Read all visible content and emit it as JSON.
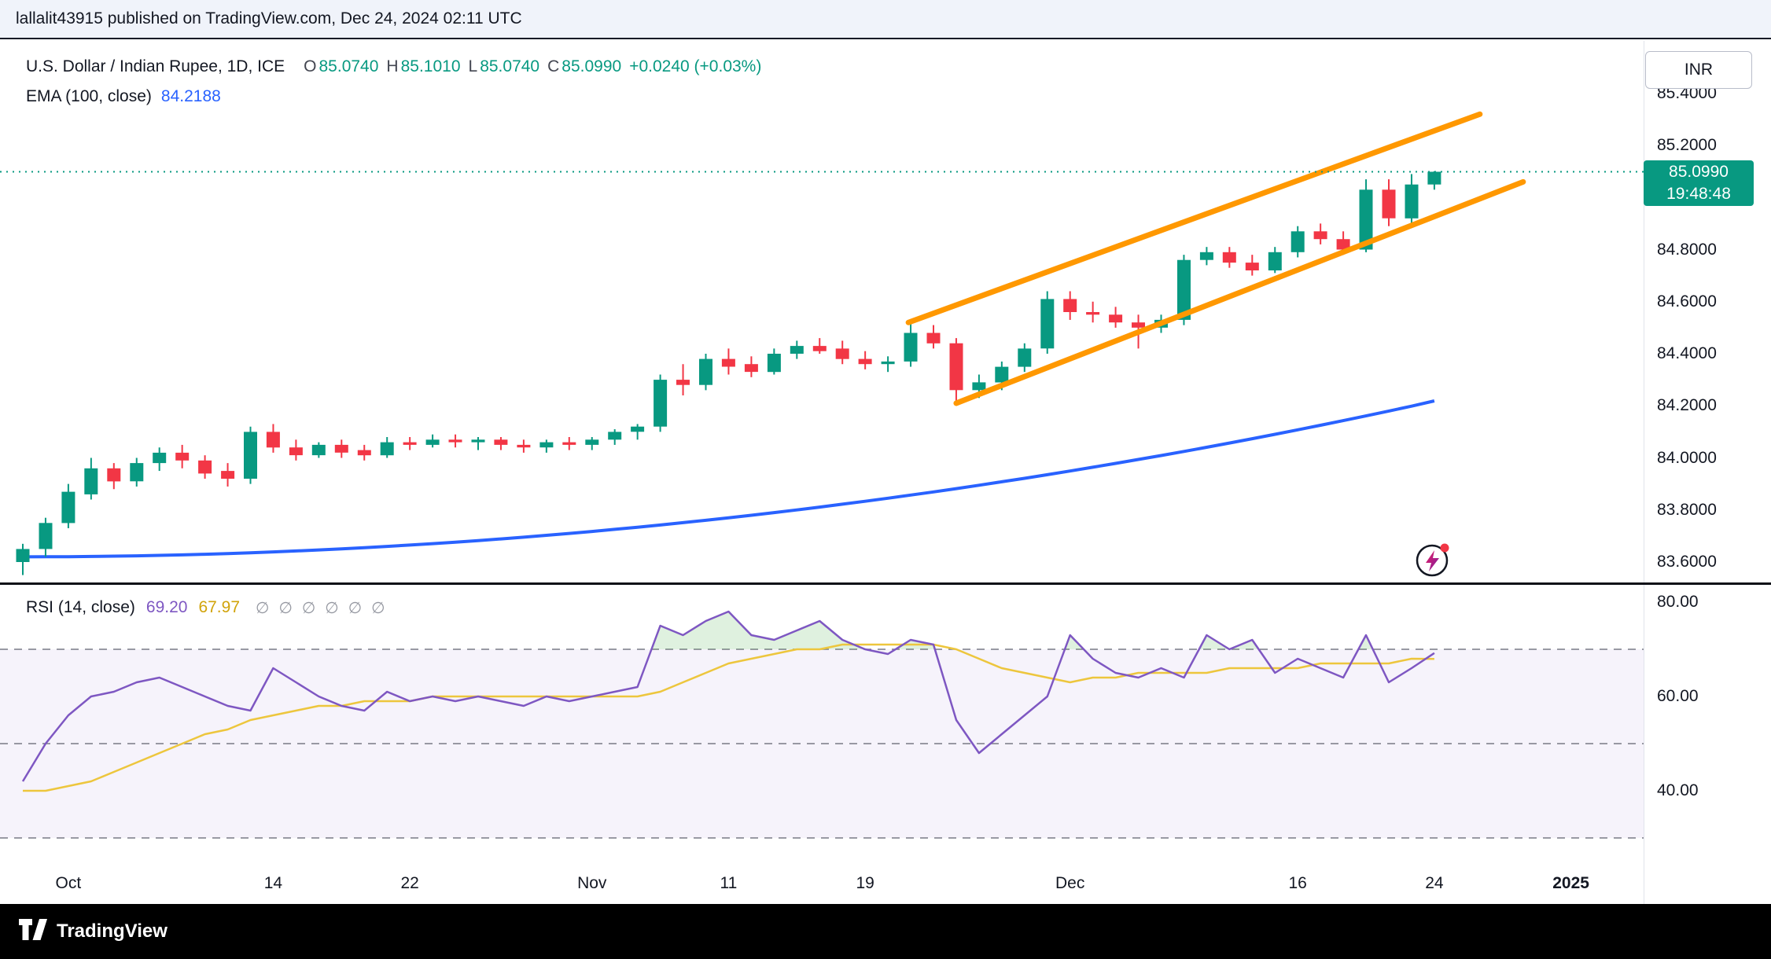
{
  "attribution": {
    "text": "lallalit43915 published on TradingView.com, Dec 24, 2024 02:11 UTC"
  },
  "header": {
    "symbol": "U.S. Dollar / Indian Rupee, 1D, ICE",
    "o_label": "O",
    "o": "85.0740",
    "h_label": "H",
    "h": "85.1010",
    "l_label": "L",
    "l": "85.0740",
    "c_label": "C",
    "c": "85.0990",
    "change": "+0.0240 (+0.03%)",
    "indicator_label": "EMA (100, close)",
    "indicator_value": "84.2188"
  },
  "price_axis": {
    "currency": "INR",
    "labels": [
      {
        "text": "85.4000",
        "value": 85.4
      },
      {
        "text": "85.2000",
        "value": 85.2
      },
      {
        "text": "84.8000",
        "value": 84.8
      },
      {
        "text": "84.6000",
        "value": 84.6
      },
      {
        "text": "84.4000",
        "value": 84.4
      },
      {
        "text": "84.2000",
        "value": 84.2
      },
      {
        "text": "84.0000",
        "value": 84.0
      },
      {
        "text": "83.8000",
        "value": 83.8
      },
      {
        "text": "83.6000",
        "value": 83.6
      }
    ],
    "current_price": "85.0990",
    "countdown": "19:48:48"
  },
  "rsi_panel": {
    "label": "RSI (14, close)",
    "value": "69.20",
    "ma_value": "67.97",
    "hidden_icons": [
      "∅",
      "∅",
      "∅",
      "∅",
      "∅",
      "∅"
    ],
    "axis_labels": [
      {
        "text": "80.00",
        "value": 80
      },
      {
        "text": "60.00",
        "value": 60
      },
      {
        "text": "40.00",
        "value": 40
      }
    ]
  },
  "time_axis": {
    "labels": [
      {
        "text": "Oct",
        "i": 2,
        "bold": false
      },
      {
        "text": "14",
        "i": 11,
        "bold": false
      },
      {
        "text": "22",
        "i": 17,
        "bold": false
      },
      {
        "text": "Nov",
        "i": 25,
        "bold": false
      },
      {
        "text": "11",
        "i": 31,
        "bold": false
      },
      {
        "text": "19",
        "i": 37,
        "bold": false
      },
      {
        "text": "Dec",
        "i": 46,
        "bold": false
      },
      {
        "text": "16",
        "i": 56,
        "bold": false
      },
      {
        "text": "24",
        "i": 62,
        "bold": false
      },
      {
        "text": "2025",
        "i": 68,
        "bold": true
      }
    ]
  },
  "footer": {
    "brand": "TradingView"
  },
  "colors": {
    "up": "#089981",
    "down": "#f23645",
    "ema": "#2962ff",
    "channel": "#ff9800",
    "rsi": "#7e57c2",
    "rsi_ma": "#edc63d",
    "badge": "#089981"
  },
  "chart_data": [
    {
      "type": "candlestick",
      "title": "U.S. Dollar / Indian Rupee, 1D, ICE",
      "ylabel": "INR",
      "ylim": [
        83.5,
        85.45
      ],
      "candles": [
        [
          83.6,
          83.67,
          83.55,
          83.65
        ],
        [
          83.65,
          83.77,
          83.62,
          83.75
        ],
        [
          83.75,
          83.9,
          83.73,
          83.87
        ],
        [
          83.86,
          84.0,
          83.84,
          83.96
        ],
        [
          83.96,
          83.98,
          83.88,
          83.91
        ],
        [
          83.91,
          84.0,
          83.89,
          83.98
        ],
        [
          83.98,
          84.04,
          83.95,
          84.02
        ],
        [
          84.02,
          84.05,
          83.96,
          83.99
        ],
        [
          83.99,
          84.01,
          83.92,
          83.94
        ],
        [
          83.95,
          83.98,
          83.89,
          83.92
        ],
        [
          83.92,
          84.12,
          83.9,
          84.1
        ],
        [
          84.1,
          84.13,
          84.02,
          84.04
        ],
        [
          84.04,
          84.07,
          83.99,
          84.01
        ],
        [
          84.01,
          84.06,
          84.0,
          84.05
        ],
        [
          84.05,
          84.07,
          84.0,
          84.02
        ],
        [
          84.03,
          84.05,
          83.99,
          84.01
        ],
        [
          84.01,
          84.08,
          84.0,
          84.06
        ],
        [
          84.06,
          84.08,
          84.03,
          84.05
        ],
        [
          84.05,
          84.09,
          84.04,
          84.07
        ],
        [
          84.07,
          84.09,
          84.04,
          84.06
        ],
        [
          84.06,
          84.08,
          84.03,
          84.07
        ],
        [
          84.07,
          84.08,
          84.03,
          84.05
        ],
        [
          84.05,
          84.07,
          84.02,
          84.04
        ],
        [
          84.04,
          84.07,
          84.02,
          84.06
        ],
        [
          84.06,
          84.08,
          84.03,
          84.05
        ],
        [
          84.05,
          84.08,
          84.03,
          84.07
        ],
        [
          84.07,
          84.11,
          84.05,
          84.1
        ],
        [
          84.1,
          84.13,
          84.07,
          84.12
        ],
        [
          84.12,
          84.32,
          84.1,
          84.3
        ],
        [
          84.3,
          84.36,
          84.24,
          84.28
        ],
        [
          84.28,
          84.4,
          84.26,
          84.38
        ],
        [
          84.38,
          84.42,
          84.32,
          84.35
        ],
        [
          84.36,
          84.39,
          84.31,
          84.33
        ],
        [
          84.33,
          84.42,
          84.32,
          84.4
        ],
        [
          84.4,
          84.45,
          84.38,
          84.43
        ],
        [
          84.43,
          84.46,
          84.4,
          84.41
        ],
        [
          84.42,
          84.45,
          84.36,
          84.38
        ],
        [
          84.38,
          84.41,
          84.34,
          84.36
        ],
        [
          84.36,
          84.39,
          84.33,
          84.37
        ],
        [
          84.37,
          84.53,
          84.35,
          84.48
        ],
        [
          84.48,
          84.51,
          84.42,
          84.44
        ],
        [
          84.44,
          84.46,
          84.22,
          84.26
        ],
        [
          84.26,
          84.32,
          84.23,
          84.29
        ],
        [
          84.29,
          84.37,
          84.26,
          84.35
        ],
        [
          84.35,
          84.44,
          84.33,
          84.42
        ],
        [
          84.42,
          84.64,
          84.4,
          84.61
        ],
        [
          84.61,
          84.64,
          84.53,
          84.56
        ],
        [
          84.56,
          84.6,
          84.52,
          84.55
        ],
        [
          84.55,
          84.58,
          84.5,
          84.52
        ],
        [
          84.52,
          84.55,
          84.42,
          84.5
        ],
        [
          84.5,
          84.55,
          84.48,
          84.53
        ],
        [
          84.53,
          84.78,
          84.51,
          84.76
        ],
        [
          84.76,
          84.81,
          84.74,
          84.79
        ],
        [
          84.79,
          84.81,
          84.73,
          84.75
        ],
        [
          84.75,
          84.78,
          84.7,
          84.72
        ],
        [
          84.72,
          84.81,
          84.71,
          84.79
        ],
        [
          84.79,
          84.89,
          84.77,
          84.87
        ],
        [
          84.87,
          84.9,
          84.82,
          84.84
        ],
        [
          84.84,
          84.87,
          84.78,
          84.8
        ],
        [
          84.8,
          85.07,
          84.79,
          85.03
        ],
        [
          85.03,
          85.07,
          84.89,
          84.92
        ],
        [
          84.92,
          85.09,
          84.9,
          85.05
        ],
        [
          85.05,
          85.101,
          85.03,
          85.099
        ]
      ],
      "overlays": {
        "ema100": [
          83.62,
          83.6202,
          83.6206,
          83.6214,
          83.6225,
          83.6239,
          83.6256,
          83.6276,
          83.63,
          83.6326,
          83.6356,
          83.6389,
          83.6425,
          83.6464,
          83.6506,
          83.6551,
          83.66,
          83.6651,
          83.6706,
          83.6763,
          83.6824,
          83.6888,
          83.6955,
          83.7025,
          83.7099,
          83.7175,
          83.7255,
          83.7337,
          83.7423,
          83.7512,
          83.7604,
          83.7699,
          83.7797,
          83.7898,
          83.8003,
          83.811,
          83.8221,
          83.8334,
          83.8451,
          83.8571,
          83.8694,
          83.882,
          83.8949,
          83.9081,
          83.9216,
          83.9355,
          83.9496,
          83.9641,
          83.9788,
          83.9939,
          84.0092,
          84.0249,
          84.0409,
          84.0572,
          84.0738,
          84.0907,
          84.1079,
          84.1254,
          84.1432,
          84.1613,
          84.1798,
          84.1985,
          84.2188
        ],
        "channel_upper": {
          "i1": 38.9,
          "p1": 84.52,
          "i2": 64.0,
          "p2": 85.32
        },
        "channel_lower": {
          "i1": 41.0,
          "p1": 84.21,
          "i2": 65.9,
          "p2": 85.06
        },
        "current_price": 85.099
      }
    },
    {
      "type": "line",
      "title": "RSI (14, close)",
      "ylim": [
        20,
        90
      ],
      "levels": [
        70,
        50,
        30
      ],
      "series": [
        {
          "name": "RSI",
          "color": "#7e57c2",
          "values": [
            42,
            50,
            56,
            60,
            61,
            63,
            64,
            62,
            60,
            58,
            57,
            66,
            63,
            60,
            58,
            57,
            61,
            59,
            60,
            59,
            60,
            59,
            58,
            60,
            59,
            60,
            61,
            62,
            75,
            73,
            76,
            78,
            73,
            72,
            74,
            76,
            72,
            70,
            69,
            72,
            71,
            55,
            48,
            52,
            56,
            60,
            73,
            68,
            65,
            64,
            66,
            64,
            73,
            70,
            72,
            65,
            68,
            66,
            64,
            73,
            63,
            66,
            69.2
          ]
        },
        {
          "name": "RSI-based MA",
          "color": "#edc63d",
          "values": [
            40,
            40,
            41,
            42,
            44,
            46,
            48,
            50,
            52,
            53,
            55,
            56,
            57,
            58,
            58,
            59,
            59,
            59,
            60,
            60,
            60,
            60,
            60,
            60,
            60,
            60,
            60,
            60,
            61,
            63,
            65,
            67,
            68,
            69,
            70,
            70,
            71,
            71,
            71,
            71,
            71,
            70,
            68,
            66,
            65,
            64,
            63,
            64,
            64,
            65,
            65,
            65,
            65,
            66,
            66,
            66,
            66,
            67,
            67,
            67,
            67,
            68,
            67.97
          ]
        }
      ]
    }
  ]
}
